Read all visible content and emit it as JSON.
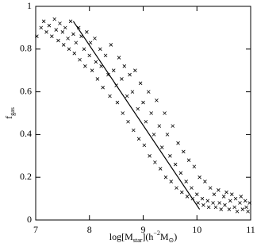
{
  "chart_data": {
    "type": "scatter",
    "xlabel": [
      "log[M",
      "star",
      "](h",
      "−2",
      "M",
      "⊙",
      ")"
    ],
    "ylabel": [
      "f",
      "gas"
    ],
    "xlim": [
      7,
      11
    ],
    "xticks": [
      7,
      8,
      9,
      10,
      11
    ],
    "ylim": [
      0,
      1
    ],
    "yticks": [
      0,
      0.2,
      0.4,
      0.6,
      0.8,
      1
    ],
    "color": "#000000",
    "series": [
      {
        "style": "cross",
        "x": [
          7.02,
          7.1,
          7.15,
          7.2,
          7.25,
          7.3,
          7.35,
          7.38,
          7.42,
          7.45,
          7.5,
          7.52,
          7.55,
          7.6,
          7.62,
          7.65,
          7.7,
          7.72,
          7.75,
          7.8,
          7.82,
          7.85,
          7.9,
          7.92,
          7.95,
          8.0,
          8.02,
          8.05,
          8.1,
          8.12,
          8.15,
          8.2,
          8.22,
          8.25,
          8.3,
          8.35,
          8.38,
          8.4,
          8.45,
          8.5,
          8.52,
          8.55,
          8.6,
          8.62,
          8.65,
          8.7,
          8.72,
          8.75,
          8.8,
          8.82,
          8.85,
          8.9,
          8.92,
          8.95,
          9.0,
          9.02,
          9.05,
          9.1,
          9.12,
          9.15,
          9.2,
          9.22,
          9.25,
          9.3,
          9.32,
          9.35,
          9.4,
          9.42,
          9.45,
          9.5,
          9.52,
          9.55,
          9.6,
          9.62,
          9.65,
          9.7,
          9.72,
          9.75,
          9.8,
          9.82,
          9.85,
          9.9,
          9.92,
          9.95,
          10.0,
          10.02,
          10.05,
          10.1,
          10.12,
          10.15,
          10.2,
          10.22,
          10.25,
          10.3,
          10.32,
          10.35,
          10.4,
          10.42,
          10.45,
          10.5,
          10.52,
          10.55,
          10.6,
          10.62,
          10.65,
          10.7,
          10.72,
          10.75,
          10.8,
          10.82,
          10.85,
          10.9,
          10.92,
          10.95,
          10.98
        ],
        "values": [
          0.86,
          0.9,
          0.93,
          0.88,
          0.91,
          0.86,
          0.94,
          0.89,
          0.84,
          0.92,
          0.88,
          0.82,
          0.9,
          0.85,
          0.8,
          0.93,
          0.87,
          0.78,
          0.83,
          0.9,
          0.75,
          0.86,
          0.8,
          0.72,
          0.88,
          0.77,
          0.83,
          0.7,
          0.85,
          0.74,
          0.66,
          0.8,
          0.72,
          0.62,
          0.77,
          0.68,
          0.58,
          0.82,
          0.7,
          0.63,
          0.55,
          0.76,
          0.66,
          0.5,
          0.72,
          0.58,
          0.46,
          0.68,
          0.6,
          0.42,
          0.7,
          0.52,
          0.38,
          0.64,
          0.55,
          0.35,
          0.46,
          0.6,
          0.3,
          0.5,
          0.4,
          0.27,
          0.56,
          0.44,
          0.24,
          0.34,
          0.5,
          0.2,
          0.4,
          0.3,
          0.18,
          0.44,
          0.26,
          0.15,
          0.36,
          0.22,
          0.13,
          0.32,
          0.18,
          0.11,
          0.28,
          0.15,
          0.1,
          0.25,
          0.12,
          0.08,
          0.2,
          0.1,
          0.07,
          0.18,
          0.09,
          0.06,
          0.15,
          0.08,
          0.12,
          0.06,
          0.14,
          0.08,
          0.05,
          0.11,
          0.07,
          0.13,
          0.05,
          0.09,
          0.12,
          0.06,
          0.1,
          0.04,
          0.08,
          0.11,
          0.05,
          0.09,
          0.06,
          0.04,
          0.08
        ]
      },
      {
        "style": "line",
        "x": [
          7.7,
          10.05
        ],
        "values": [
          0.93,
          0.05
        ]
      }
    ]
  }
}
